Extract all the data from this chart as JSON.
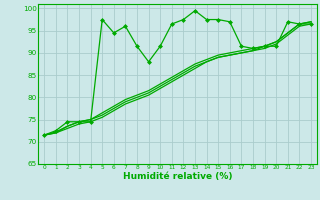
{
  "title": "",
  "xlabel": "Humidité relative (%)",
  "ylabel": "",
  "bg_color": "#cce8e8",
  "grid_color": "#aacccc",
  "line_color": "#00aa00",
  "xlim": [
    -0.5,
    23.5
  ],
  "ylim": [
    65,
    101
  ],
  "yticks": [
    65,
    70,
    75,
    80,
    85,
    90,
    95,
    100
  ],
  "xticks": [
    0,
    1,
    2,
    3,
    4,
    5,
    6,
    7,
    8,
    9,
    10,
    11,
    12,
    13,
    14,
    15,
    16,
    17,
    18,
    19,
    20,
    21,
    22,
    23
  ],
  "series1_x": [
    0,
    1,
    2,
    3,
    4,
    5,
    6,
    7,
    8,
    9,
    10,
    11,
    12,
    13,
    14,
    15,
    16,
    17,
    18,
    19,
    20,
    21,
    22,
    23
  ],
  "series1_y": [
    71.5,
    72.5,
    74.5,
    74.5,
    74.5,
    97.5,
    94.5,
    96.0,
    91.5,
    88.0,
    91.5,
    96.5,
    97.5,
    99.5,
    97.5,
    97.5,
    97.0,
    91.5,
    91.0,
    91.5,
    91.5,
    97.0,
    96.5,
    96.5
  ],
  "series2_x": [
    0,
    1,
    2,
    3,
    4,
    5,
    6,
    7,
    8,
    9,
    10,
    11,
    12,
    13,
    14,
    15,
    16,
    17,
    18,
    19,
    20,
    21,
    22,
    23
  ],
  "series2_y": [
    71.5,
    72.2,
    73.5,
    74.5,
    75.0,
    76.5,
    78.0,
    79.5,
    80.5,
    81.5,
    83.0,
    84.5,
    86.0,
    87.5,
    88.5,
    89.5,
    90.0,
    90.5,
    91.0,
    91.5,
    92.5,
    94.5,
    96.5,
    97.0
  ],
  "series3_x": [
    0,
    1,
    2,
    3,
    4,
    5,
    6,
    7,
    8,
    9,
    10,
    11,
    12,
    13,
    14,
    15,
    16,
    17,
    18,
    19,
    20,
    21,
    22,
    23
  ],
  "series3_y": [
    71.5,
    72.0,
    73.0,
    74.0,
    74.5,
    75.5,
    77.0,
    78.5,
    79.5,
    80.5,
    82.0,
    83.5,
    85.0,
    86.5,
    88.0,
    89.0,
    89.5,
    90.0,
    90.5,
    91.0,
    92.0,
    94.0,
    96.0,
    96.5
  ],
  "series4_x": [
    0,
    1,
    2,
    3,
    4,
    5,
    6,
    7,
    8,
    9,
    10,
    11,
    12,
    13,
    14,
    15,
    16,
    17,
    18,
    19,
    20,
    21,
    22,
    23
  ],
  "series4_y": [
    71.5,
    72.0,
    73.5,
    74.5,
    75.0,
    76.0,
    77.5,
    79.0,
    80.0,
    81.0,
    82.5,
    84.0,
    85.5,
    87.0,
    88.0,
    89.0,
    89.5,
    90.0,
    90.5,
    91.5,
    92.5,
    94.5,
    96.5,
    97.0
  ]
}
